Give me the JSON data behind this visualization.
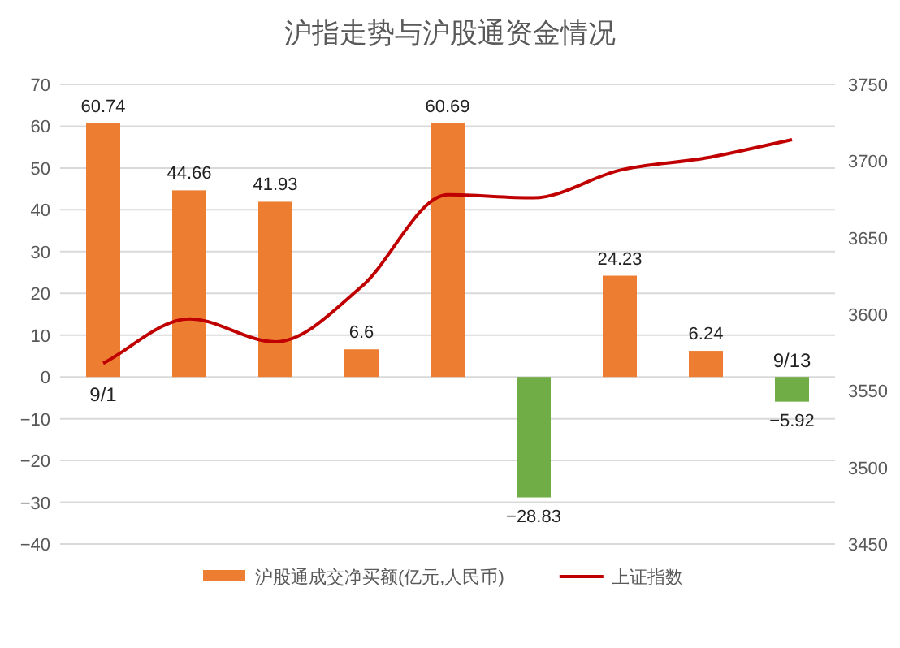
{
  "chart_data": {
    "type": "bar",
    "title": "沪指走势与沪股通资金情况",
    "categories": [
      "9/1",
      null,
      null,
      null,
      null,
      null,
      null,
      null,
      "9/13"
    ],
    "series": [
      {
        "name": "沪股通成交净买额(亿元,人民币)",
        "color": "#ed7d31",
        "colors": [
          "#ed7d31",
          "#ed7d31",
          "#ed7d31",
          "#ed7d31",
          "#ed7d31",
          "#70ad47",
          "#ed7d31",
          "#ed7d31",
          "#70ad47"
        ],
        "values": [
          60.74,
          44.66,
          41.93,
          6.6,
          60.69,
          -28.83,
          24.23,
          6.24,
          -5.92
        ],
        "value_labels": [
          "60.74",
          "44.66",
          "41.93",
          "6.6",
          "60.69",
          "−28.83",
          "24.23",
          "6.24",
          "−5.92"
        ]
      },
      {
        "name": "上证指数",
        "type": "line",
        "axis": "y2",
        "color": "#c00000",
        "values": [
          3568,
          3597,
          3582,
          3618,
          3678,
          3676,
          3694,
          3702,
          3714
        ]
      }
    ],
    "ylim": [
      -40,
      70
    ],
    "yticks": [
      {
        "value": -40,
        "label": "−40"
      },
      {
        "value": -30,
        "label": "−30"
      },
      {
        "value": -20,
        "label": "−20"
      },
      {
        "value": -10,
        "label": "−10"
      },
      0,
      10,
      20,
      30,
      40,
      50,
      60,
      70
    ],
    "y2lim": [
      3450,
      3750
    ],
    "y2ticks": [
      3450,
      3500,
      3550,
      3600,
      3650,
      3700,
      3750
    ],
    "grid": "y",
    "legend": "bottom"
  }
}
